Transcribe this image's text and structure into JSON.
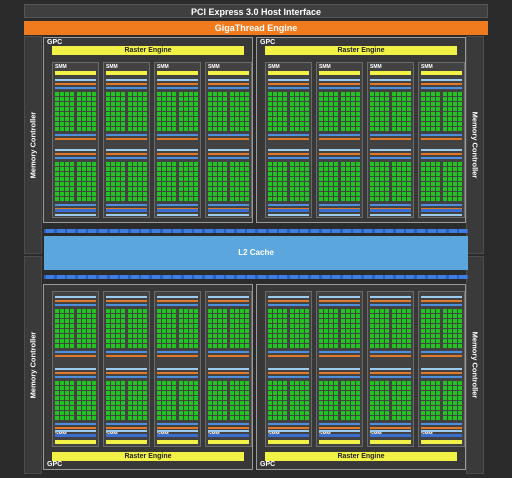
{
  "host_interface": {
    "label": "PCI Express 3.0 Host Interface"
  },
  "gigathread": {
    "label": "GigaThread Engine"
  },
  "l2_cache": {
    "label": "L2 Cache"
  },
  "memory_controller_label": "Memory Controller",
  "gpc_label": "GPC",
  "raster_engine_label": "Raster Engine",
  "smm_label": "SMM",
  "colors": {
    "background": "#2b2b2b",
    "gigathread": "#f07a1e",
    "raster_engine": "#f2f246",
    "l2_cache": "#5ba6dc",
    "cuda_core": "#22c422",
    "register_file": "#4f8fe0",
    "dispatch": "#e07a2a",
    "texture": "#3a6fd0",
    "cache": "#9ccbeb"
  }
}
